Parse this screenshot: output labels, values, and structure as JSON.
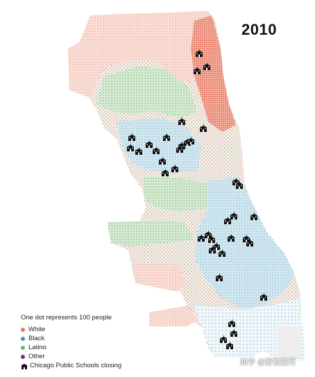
{
  "map": {
    "year": "2010",
    "legend": {
      "title": "One dot represents 100 people",
      "items": [
        {
          "label": "White",
          "color": "#e8735f"
        },
        {
          "label": "Black",
          "color": "#3f93b3"
        },
        {
          "label": "Latino",
          "color": "#6cb36a"
        },
        {
          "label": "Other",
          "color": "#7a2a8c"
        }
      ],
      "schools_label": "Chicago Public Schools closing",
      "school_icon": "school-building-icon"
    },
    "watermark": "知乎 @野泊望月"
  }
}
